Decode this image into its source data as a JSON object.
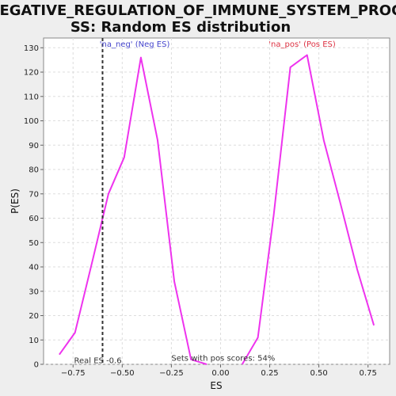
{
  "chart_data": {
    "type": "line",
    "title": "NEGATIVE_REGULATION_OF_IMMUNE_SYSTEM_PROCESS: Random ES distribution",
    "title_lines": [
      "NEGATIVE_REGULATION_OF_IMMUNE_SYSTEM_PROCE",
      "SS: Random ES distribution"
    ],
    "xlabel": "ES",
    "ylabel": "P(ES)",
    "xlim": [
      -0.9,
      0.86
    ],
    "ylim": [
      0,
      134
    ],
    "xticks": [
      -0.75,
      -0.5,
      -0.25,
      0.0,
      0.25,
      0.5,
      0.75
    ],
    "xtick_labels": [
      "−0.75",
      "−0.50",
      "−0.25",
      "0.00",
      "0.25",
      "0.50",
      "0.75"
    ],
    "yticks": [
      0,
      10,
      20,
      30,
      40,
      50,
      60,
      70,
      80,
      90,
      100,
      110,
      120,
      130
    ],
    "ytick_labels": [
      "0",
      "10",
      "20",
      "30",
      "40",
      "50",
      "60",
      "70",
      "80",
      "90",
      "100",
      "110",
      "120",
      "130"
    ],
    "grid": true,
    "line_color": "#ee33ee",
    "series": [
      {
        "name": "neg",
        "x": [
          -0.82,
          -0.74,
          -0.65,
          -0.57,
          -0.49,
          -0.405,
          -0.32,
          -0.235,
          -0.15,
          -0.07
        ],
        "y": [
          4,
          13,
          43,
          70,
          85,
          126,
          92,
          34,
          2,
          0
        ]
      },
      {
        "name": "pos",
        "x": [
          0.11,
          0.19,
          0.27,
          0.355,
          0.44,
          0.525,
          0.61,
          0.695,
          0.78
        ],
        "y": [
          0,
          11,
          61,
          122,
          127,
          92,
          66,
          39,
          16
        ]
      }
    ],
    "real_es": {
      "value": -0.6,
      "label": "Real ES -0.6"
    },
    "annotations": {
      "neg_label": {
        "text": "'na_neg' (Neg ES)",
        "color": "#4444cc",
        "x": -0.615,
        "y": 130.5
      },
      "pos_label": {
        "text": "'na_pos' (Pos ES)",
        "color": "#dd3344",
        "x": 0.245,
        "y": 130.5
      },
      "pos_scores": {
        "text": "Sets with pos scores: 54%",
        "x": -0.25,
        "y": 1.5
      },
      "real_es_text": {
        "x": -0.745,
        "y": 0.5
      }
    }
  }
}
